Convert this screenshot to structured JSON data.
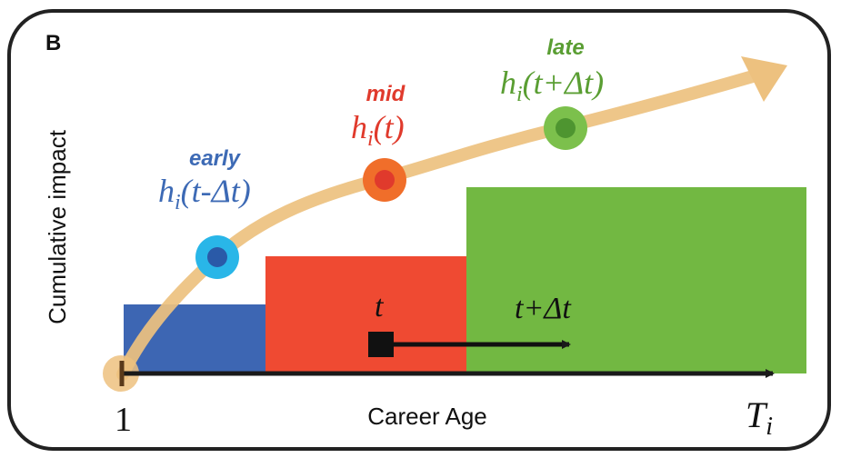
{
  "panel": {
    "label": "B"
  },
  "axes": {
    "ylabel": "Cumulative impact",
    "xlabel": "Career Age",
    "x_start_label": "1",
    "x_end_main": "T",
    "x_end_sub": "i"
  },
  "phases": [
    {
      "id": "early",
      "title": "early",
      "color": "#3d6ab5",
      "dot_outer": "#29b6e8",
      "dot_inner": "#2a5aa8",
      "formula": {
        "h": "h",
        "sub": "i",
        "arg": "(t-Δt)"
      }
    },
    {
      "id": "mid",
      "title": "mid",
      "color": "#e03a2c",
      "dot_outer": "#f06e2a",
      "dot_inner": "#e03a2c",
      "formula": {
        "h": "h",
        "sub": "i",
        "arg": "(t)"
      }
    },
    {
      "id": "late",
      "title": "late",
      "color": "#5a9e33",
      "dot_outer": "#7cc04c",
      "dot_inner": "#4e9530",
      "formula": {
        "h": "h",
        "sub": "i",
        "arg": "(t+Δt)"
      }
    }
  ],
  "blocks": [
    {
      "phase": "early",
      "color": "#3d66b3"
    },
    {
      "phase": "mid",
      "color": "#ef4a32"
    },
    {
      "phase": "late",
      "color": "#72b842"
    }
  ],
  "shift": {
    "from_label": "t",
    "to_label": "t+Δt"
  },
  "colors": {
    "curve": "#edc17f",
    "frame": "#222222",
    "axis": "#1a1a1a"
  }
}
